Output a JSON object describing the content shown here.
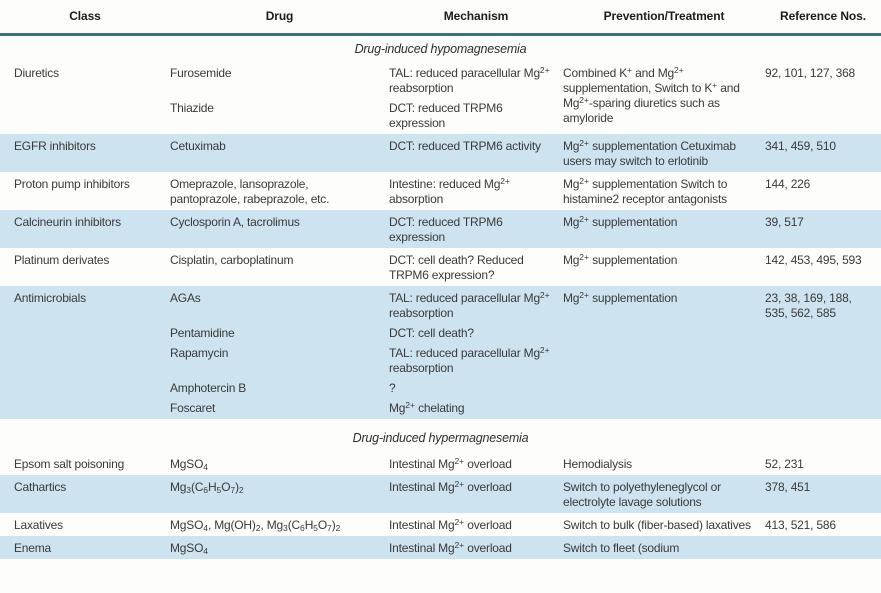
{
  "colors": {
    "page_background": "#fdfdfb",
    "header_rule_teal": "#3e7280",
    "shaded_row_blue": "#cde3ef",
    "body_text": "#3a3a3a",
    "header_text": "#1c1c1c"
  },
  "table": {
    "columns": [
      "Class",
      "Drug",
      "Mechanism",
      "Prevention/Treatment",
      "Reference Nos."
    ],
    "sections": [
      {
        "title": "Drug-induced hypomagnesemia",
        "rows": [
          {
            "class": "Diuretics",
            "pairs": [
              {
                "drug": "Furosemide",
                "mechanism": "TAL: reduced paracellular Mg^{2+} reabsorption"
              },
              {
                "drug": "Thiazide",
                "mechanism": "DCT: reduced TRPM6 expression"
              }
            ],
            "prevention": "Combined K^{+} and Mg^{2+} supplementation, Switch to K^{+} and Mg^{2+}-sparing diuretics such as amyloride",
            "refs": "92, 101, 127, 368"
          },
          {
            "class": "EGFR inhibitors",
            "pairs": [
              {
                "drug": "Cetuximab",
                "mechanism": "DCT: reduced TRPM6 activity"
              }
            ],
            "prevention": "Mg^{2+} supplementation Cetuximab users may switch to erlotinib",
            "refs": "341, 459, 510"
          },
          {
            "class": "Proton pump inhibitors",
            "pairs": [
              {
                "drug": "Omeprazole, lansoprazole, pantoprazole, rabeprazole, etc.",
                "mechanism": "Intestine: reduced Mg^{2+} absorption"
              }
            ],
            "prevention": "Mg^{2+} supplementation Switch to histamine2 receptor antagonists",
            "refs": "144, 226"
          },
          {
            "class": "Calcineurin inhibitors",
            "pairs": [
              {
                "drug": "Cyclosporin A, tacrolimus",
                "mechanism": "DCT: reduced TRPM6 expression"
              }
            ],
            "prevention": "Mg^{2+} supplementation",
            "refs": "39, 517"
          },
          {
            "class": "Platinum derivates",
            "pairs": [
              {
                "drug": "Cisplatin, carboplatinum",
                "mechanism": "DCT: cell death? Reduced TRPM6 expression?"
              }
            ],
            "prevention": "Mg^{2+} supplementation",
            "refs": "142, 453, 495, 593"
          },
          {
            "class": "Antimicrobials",
            "pairs": [
              {
                "drug": "AGAs",
                "mechanism": "TAL: reduced paracellular Mg^{2+} reabsorption"
              },
              {
                "drug": "Pentamidine",
                "mechanism": "DCT: cell death?"
              },
              {
                "drug": "Rapamycin",
                "mechanism": "TAL: reduced paracellular Mg^{2+} reabsorption"
              },
              {
                "drug": "Amphotercin B",
                "mechanism": "?"
              },
              {
                "drug": "Foscaret",
                "mechanism": "Mg^{2+} chelating"
              }
            ],
            "prevention": "Mg^{2+} supplementation",
            "refs": "23, 38, 169, 188, 535, 562, 585"
          }
        ]
      },
      {
        "title": "Drug-induced hypermagnesemia",
        "rows": [
          {
            "class": "Epsom salt poisoning",
            "pairs": [
              {
                "drug": "MgSO_{4}",
                "mechanism": "Intestinal Mg^{2+} overload"
              }
            ],
            "prevention": "Hemodialysis",
            "refs": "52, 231"
          },
          {
            "class": "Cathartics",
            "pairs": [
              {
                "drug": "Mg_{3}(C_{6}H_{5}O_{7})_{2}",
                "mechanism": "Intestinal Mg^{2+} overload"
              }
            ],
            "prevention": "Switch to polyethyleneglycol or electrolyte lavage solutions",
            "refs": "378, 451"
          },
          {
            "class": "Laxatives",
            "pairs": [
              {
                "drug": "MgSO_{4}, Mg(OH)_{2}, Mg_{3}(C_{6}H_{5}O_{7})_{2}",
                "mechanism": "Intestinal Mg^{2+} overload"
              }
            ],
            "prevention": "Switch to bulk (fiber-based) laxatives",
            "refs": "413, 521, 586"
          },
          {
            "class": "Enema",
            "pairs": [
              {
                "drug": "MgSO_{4}",
                "mechanism": "Intestinal Mg^{2+} overload"
              }
            ],
            "prevention": "Switch to fleet (sodium",
            "refs": ""
          }
        ]
      }
    ]
  }
}
